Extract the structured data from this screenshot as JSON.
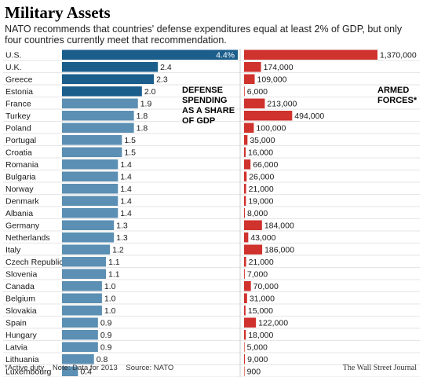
{
  "title": "Military Assets",
  "subtitle": "NATO recommends that countries' defense expenditures equal at least 2% of GDP, but only four countries currently meet that recommendation.",
  "footer": {
    "note_active": "*Active duty",
    "note_data": "Note: Data for 2013",
    "source": "Source: NATO",
    "publisher": "The Wall Street Journal"
  },
  "chart_data": [
    {
      "type": "bar",
      "orientation": "horizontal",
      "title": "DEFENSE SPENDING AS A SHARE OF GDP",
      "title_lines": [
        "DEFENSE",
        "SPENDING",
        "AS A SHARE",
        "OF GDP"
      ],
      "categories": [
        "U.S.",
        "U.K.",
        "Greece",
        "Estonia",
        "France",
        "Turkey",
        "Poland",
        "Portugal",
        "Croatia",
        "Romania",
        "Bulgaria",
        "Norway",
        "Denmark",
        "Albania",
        "Germany",
        "Netherlands",
        "Italy",
        "Czech Republic",
        "Slovenia",
        "Canada",
        "Belgium",
        "Slovakia",
        "Spain",
        "Hungary",
        "Latvia",
        "Lithuania",
        "Luxembourg"
      ],
      "values": [
        4.4,
        2.4,
        2.3,
        2.0,
        1.9,
        1.8,
        1.8,
        1.5,
        1.5,
        1.4,
        1.4,
        1.4,
        1.4,
        1.4,
        1.3,
        1.3,
        1.2,
        1.1,
        1.1,
        1.0,
        1.0,
        1.0,
        0.9,
        0.9,
        0.9,
        0.8,
        0.4
      ],
      "value_labels": [
        "4.4%",
        "2.4",
        "2.3",
        "2.0",
        "1.9",
        "1.8",
        "1.8",
        "1.5",
        "1.5",
        "1.4",
        "1.4",
        "1.4",
        "1.4",
        "1.4",
        "1.3",
        "1.3",
        "1.2",
        "1.1",
        "1.1",
        "1.0",
        "1.0",
        "1.0",
        "0.9",
        "0.9",
        "0.9",
        "0.8",
        "0.4"
      ],
      "highlight_count": 4,
      "colors": {
        "highlight": "#1b5e8c",
        "default": "#5b8fb3"
      },
      "xlim": [
        0,
        4.4
      ],
      "grid": false
    },
    {
      "type": "bar",
      "orientation": "horizontal",
      "title": "ARMED FORCES*",
      "title_lines": [
        "ARMED",
        "FORCES*"
      ],
      "categories": [
        "U.S.",
        "U.K.",
        "Greece",
        "Estonia",
        "France",
        "Turkey",
        "Poland",
        "Portugal",
        "Croatia",
        "Romania",
        "Bulgaria",
        "Norway",
        "Denmark",
        "Albania",
        "Germany",
        "Netherlands",
        "Italy",
        "Czech Republic",
        "Slovenia",
        "Canada",
        "Belgium",
        "Slovakia",
        "Spain",
        "Hungary",
        "Latvia",
        "Lithuania",
        "Luxembourg"
      ],
      "values": [
        1370000,
        174000,
        109000,
        6000,
        213000,
        494000,
        100000,
        35000,
        16000,
        66000,
        26000,
        21000,
        19000,
        8000,
        184000,
        43000,
        186000,
        21000,
        7000,
        70000,
        31000,
        15000,
        122000,
        18000,
        5000,
        9000,
        900
      ],
      "value_labels": [
        "1,370,000",
        "174,000",
        "109,000",
        "6,000",
        "213,000",
        "494,000",
        "100,000",
        "35,000",
        "16,000",
        "66,000",
        "26,000",
        "21,000",
        "19,000",
        "8,000",
        "184,000",
        "43,000",
        "186,000",
        "21,000",
        "7,000",
        "70,000",
        "31,000",
        "15,000",
        "122,000",
        "18,000",
        "5,000",
        "9,000",
        "900"
      ],
      "colors": {
        "bar": "#d0322d"
      },
      "xlim": [
        0,
        1370000
      ],
      "grid": false
    }
  ]
}
